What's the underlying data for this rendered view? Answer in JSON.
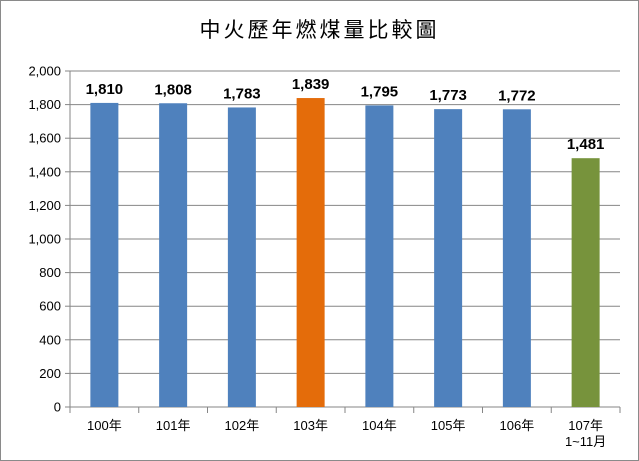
{
  "chart_data": {
    "type": "bar",
    "title": "中火歷年燃煤量比較圖",
    "categories": [
      "100年",
      "101年",
      "102年",
      "103年",
      "104年",
      "105年",
      "106年",
      "107年\n1~11月"
    ],
    "values": [
      1810,
      1808,
      1783,
      1839,
      1795,
      1773,
      1772,
      1481
    ],
    "data_labels": [
      "1,810",
      "1,808",
      "1,783",
      "1,839",
      "1,795",
      "1,773",
      "1,772",
      "1,481"
    ],
    "bar_colors": [
      "#4f81bd",
      "#4f81bd",
      "#4f81bd",
      "#e46c0a",
      "#4f81bd",
      "#4f81bd",
      "#4f81bd",
      "#77933c"
    ],
    "yticks": [
      "0",
      "200",
      "400",
      "600",
      "800",
      "1,000",
      "1,200",
      "1,400",
      "1,600",
      "1,800",
      "2,000"
    ],
    "ylim": [
      0,
      2000
    ],
    "grid": true,
    "legend": "none"
  }
}
